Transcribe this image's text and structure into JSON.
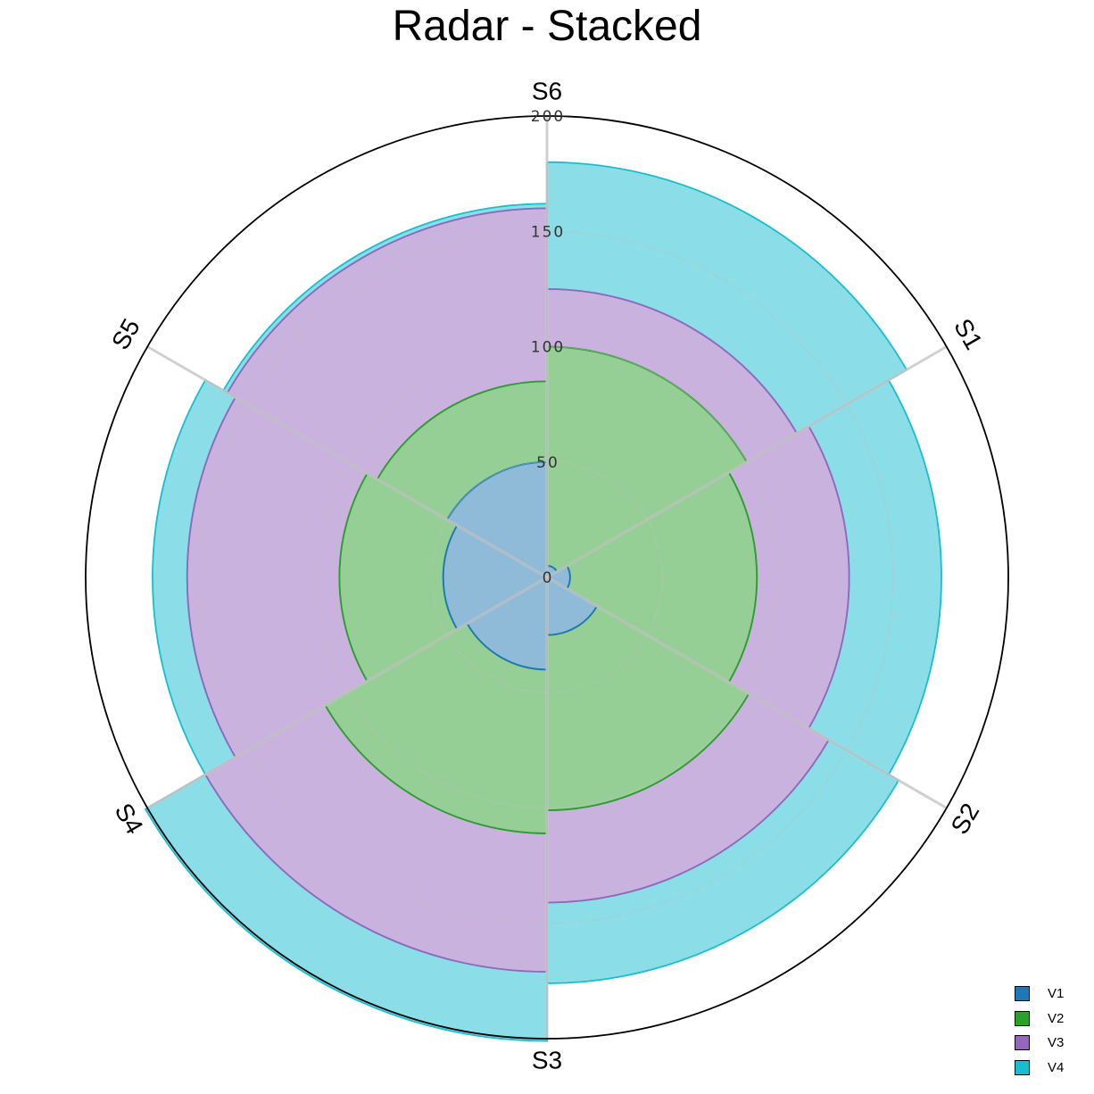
{
  "chart_data": {
    "type": "radar-stacked-bar",
    "title": "Radar - Stacked",
    "categories": [
      "S1",
      "S2",
      "S3",
      "S4",
      "S5",
      "S6"
    ],
    "rmax": 200,
    "rticks": [
      0,
      50,
      100,
      150,
      200
    ],
    "series": [
      {
        "name": "V1",
        "color": "#1f77b4",
        "values": [
          5,
          10,
          25,
          40,
          45,
          50
        ]
      },
      {
        "name": "V2",
        "color": "#2ca02c",
        "values": [
          95,
          81,
          76,
          71,
          45,
          35
        ]
      },
      {
        "name": "V3",
        "color": "#9467bd",
        "values": [
          25,
          40,
          40,
          60,
          66,
          75
        ]
      },
      {
        "name": "V4",
        "color": "#17becf",
        "values": [
          55,
          40,
          35,
          30,
          15,
          2
        ]
      }
    ]
  }
}
